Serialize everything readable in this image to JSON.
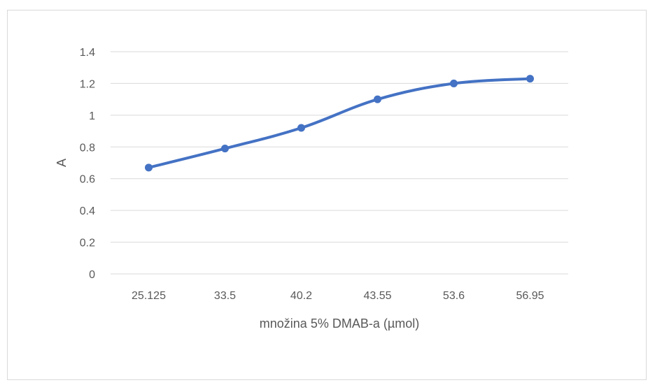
{
  "chart_data": {
    "type": "line",
    "title": "",
    "xlabel": "množina 5% DMAB-a (µmol)",
    "ylabel": "A",
    "categories": [
      "25.125",
      "33.5",
      "40.2",
      "43.55",
      "53.6",
      "56.95"
    ],
    "series": [
      {
        "values": [
          0.67,
          0.79,
          0.92,
          1.1,
          1.2,
          1.23
        ]
      }
    ],
    "ylim": [
      0,
      1.4
    ],
    "yticks": [
      "0",
      "0.2",
      "0.4",
      "0.6",
      "0.8",
      "1",
      "1.2",
      "1.4"
    ],
    "grid": true,
    "legend": "none",
    "colors": {
      "series": "#4472c4",
      "grid": "#d9d9d9",
      "text": "#595959"
    }
  }
}
